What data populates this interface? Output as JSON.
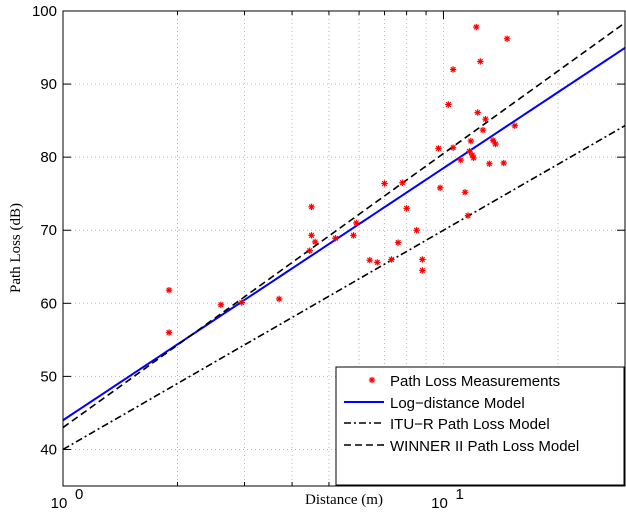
{
  "chart_data": {
    "type": "scatter",
    "title": "",
    "xlabel": "Distance (m)",
    "ylabel": "Path Loss (dB)",
    "x_scale": "log",
    "xlim": [
      1,
      30
    ],
    "ylim": [
      35,
      100
    ],
    "grid": true,
    "legend_position": "bottom-right",
    "x_ticks": [
      {
        "value": 1,
        "base": "10",
        "exp": "0"
      },
      {
        "value": 10,
        "base": "10",
        "exp": "1"
      }
    ],
    "y_ticks": [
      40,
      50,
      60,
      70,
      80,
      90,
      100
    ],
    "series": [
      {
        "name": "Path Loss Measurements",
        "kind": "markers",
        "marker": "*",
        "color": "#ff0000",
        "points": [
          [
            1.9,
            61.8
          ],
          [
            1.9,
            56.0
          ],
          [
            2.6,
            59.8
          ],
          [
            2.95,
            60.1
          ],
          [
            3.7,
            60.6
          ],
          [
            4.5,
            73.2
          ],
          [
            4.5,
            69.3
          ],
          [
            4.6,
            68.4
          ],
          [
            4.45,
            67.2
          ],
          [
            5.2,
            68.9
          ],
          [
            5.8,
            69.3
          ],
          [
            5.9,
            71.0
          ],
          [
            6.4,
            65.9
          ],
          [
            6.7,
            65.6
          ],
          [
            7.0,
            76.4
          ],
          [
            7.3,
            66.0
          ],
          [
            7.6,
            68.3
          ],
          [
            7.8,
            76.5
          ],
          [
            8.0,
            73.0
          ],
          [
            8.5,
            70.0
          ],
          [
            8.8,
            66.0
          ],
          [
            8.8,
            64.5
          ],
          [
            9.7,
            81.2
          ],
          [
            9.8,
            75.8
          ],
          [
            10.3,
            87.2
          ],
          [
            10.6,
            92.0
          ],
          [
            10.6,
            81.3
          ],
          [
            11.1,
            79.6
          ],
          [
            11.4,
            75.2
          ],
          [
            11.6,
            72.0
          ],
          [
            11.7,
            80.8
          ],
          [
            11.8,
            82.2
          ],
          [
            12.0,
            79.9
          ],
          [
            12.2,
            97.8
          ],
          [
            12.3,
            86.1
          ],
          [
            12.5,
            93.1
          ],
          [
            12.7,
            83.7
          ],
          [
            12.9,
            85.2
          ],
          [
            13.2,
            79.1
          ],
          [
            13.5,
            82.3
          ],
          [
            13.7,
            81.8
          ],
          [
            14.4,
            79.2
          ],
          [
            14.7,
            96.2
          ],
          [
            15.4,
            84.3
          ],
          [
            11.9,
            80.3
          ]
        ]
      },
      {
        "name": "Log−distance Model",
        "kind": "line",
        "dash": "solid",
        "color": "#0000ff",
        "intercept": 44.0,
        "slope": 34.5
      },
      {
        "name": "ITU−R Path Loss Model",
        "kind": "line",
        "dash": "dashdot",
        "color": "#000000",
        "intercept": 40.0,
        "slope": 30.0
      },
      {
        "name": "WINNER II Path Loss Model",
        "kind": "line",
        "dash": "dashed",
        "color": "#000000",
        "intercept": 43.0,
        "slope": 37.5
      }
    ]
  }
}
